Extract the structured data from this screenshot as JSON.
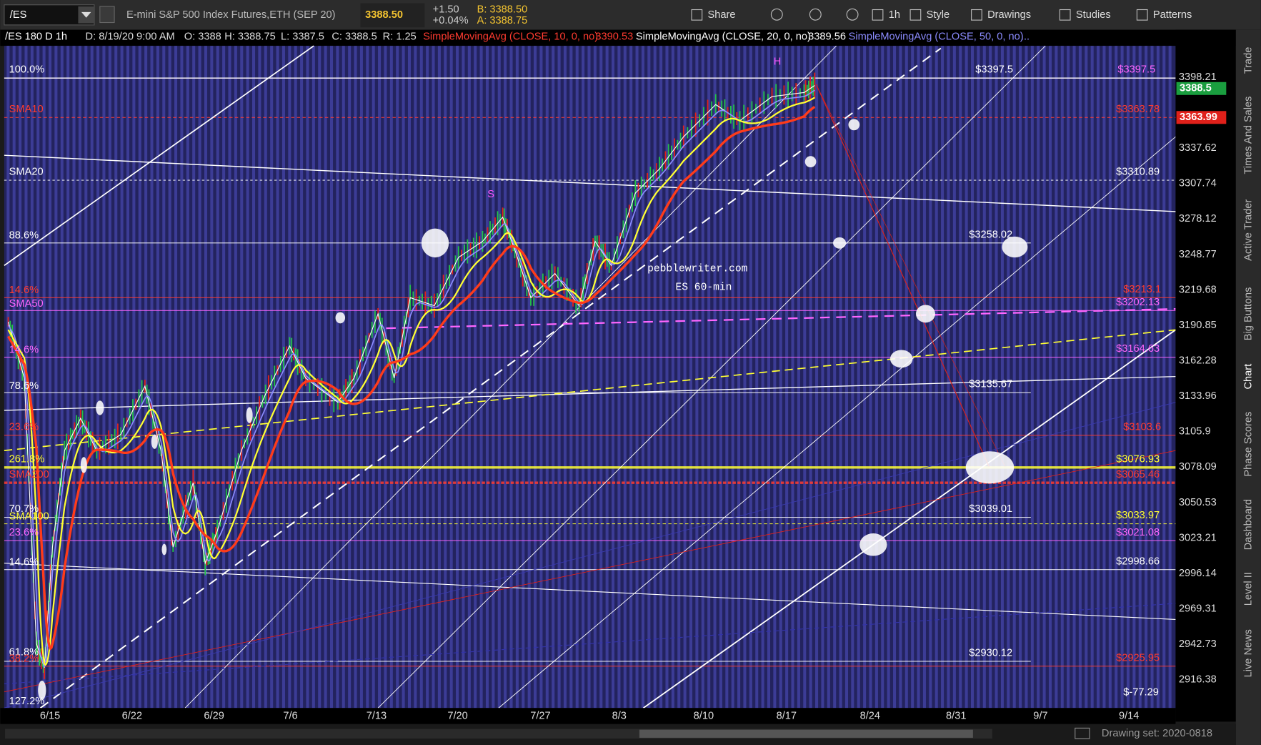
{
  "toolbar": {
    "symbol": "/ES",
    "description": "E-mini S&P 500 Index Futures,ETH (SEP 20)",
    "last": "3388.50",
    "change": "+1.50",
    "change_pct": "+0.04%",
    "bid": "B: 3388.50",
    "ask": "A: 3388.75",
    "buttons": [
      "Share",
      "1h",
      "Style",
      "Drawings",
      "Studies",
      "Patterns"
    ]
  },
  "info_bar": {
    "symbol": "/ES 180 D 1h",
    "items": [
      "D: 8/19/20 9:00 AM",
      "O: 3388",
      "H: 3388.75",
      "L: 3387.5",
      "C: 3388.5",
      "R: 1.25"
    ],
    "studies": [
      {
        "name": "SimpleMovingAvg (CLOSE, 10, 0, no)",
        "value": "3390.53",
        "color": "#ff3b30"
      },
      {
        "name": "SimpleMovingAvg (CLOSE, 20, 0, no)",
        "value": "3389.56",
        "color": "#ffffff"
      },
      {
        "name": "SimpleMovingAvg (CLOSE, 50, 0, no)",
        "value": "...",
        "color": "#8c8cff"
      }
    ]
  },
  "price_axis": [
    "3398.21",
    "3337.62",
    "3307.74",
    "3278.12",
    "3248.77",
    "3219.68",
    "3190.85",
    "3162.28",
    "3133.96",
    "3105.9",
    "3078.09",
    "3050.53",
    "3023.21",
    "2996.14",
    "2969.31",
    "2942.73",
    "2916.38"
  ],
  "price_tags": [
    {
      "label": "3388.5",
      "color": "#1a9e3f"
    },
    {
      "label": "3363.99",
      "color": "#e0201a"
    }
  ],
  "dates": [
    "6/15",
    "6/22",
    "6/29",
    "7/6",
    "7/13",
    "7/20",
    "7/27",
    "8/3",
    "8/10",
    "8/17",
    "8/24",
    "8/31",
    "9/7",
    "9/14"
  ],
  "left_labels": [
    {
      "text": "100.0%",
      "color": "#ffffff"
    },
    {
      "text": "SMA10",
      "color": "#ff3b30"
    },
    {
      "text": "SMA20",
      "color": "#ffffff"
    },
    {
      "text": "88.6%",
      "color": "#ffffff"
    },
    {
      "text": "14.6%",
      "color": "#ff3b30"
    },
    {
      "text": "SMA50",
      "color": "#ff66ff"
    },
    {
      "text": "14.6%",
      "color": "#ff66ff"
    },
    {
      "text": "78.6%",
      "color": "#ffffff"
    },
    {
      "text": "23.6%",
      "color": "#ff3b30"
    },
    {
      "text": "261.8%",
      "color": "#ffff33"
    },
    {
      "text": "SMA200",
      "color": "#ff3b30"
    },
    {
      "text": "70.7%",
      "color": "#ffffff"
    },
    {
      "text": "SMA100",
      "color": "#ffff33"
    },
    {
      "text": "23.6%",
      "color": "#ff66ff"
    },
    {
      "text": "14.6%",
      "color": "#ffffff"
    },
    {
      "text": "61.8%",
      "color": "#ffffff"
    },
    {
      "text": "38.2%",
      "color": "#ff3b30"
    },
    {
      "text": "127.2%",
      "color": "#ffffff"
    }
  ],
  "levels": [
    {
      "label": "$3397.5",
      "color": "#ffffff"
    },
    {
      "label": "$3397.5",
      "color": "#ff66ff"
    },
    {
      "label": "$3363.78",
      "color": "#ff3b30"
    },
    {
      "label": "$3310.89",
      "color": "#ffffff"
    },
    {
      "label": "$3258.02",
      "color": "#ffffff"
    },
    {
      "label": "$3213.1",
      "color": "#ff3b30"
    },
    {
      "label": "$3202.13",
      "color": "#ff66ff"
    },
    {
      "label": "$3164.63",
      "color": "#ff66ff"
    },
    {
      "label": "$3135.67",
      "color": "#ffffff"
    },
    {
      "label": "$3103.6",
      "color": "#ff3b30"
    },
    {
      "label": "$3076.93",
      "color": "#ffff33"
    },
    {
      "label": "$3065.46",
      "color": "#ff3b30"
    },
    {
      "label": "$3039.01",
      "color": "#ffffff"
    },
    {
      "label": "$3033.97",
      "color": "#ffff33"
    },
    {
      "label": "$3021.08",
      "color": "#ff66ff"
    },
    {
      "label": "$2998.66",
      "color": "#ffffff"
    },
    {
      "label": "$2930.12",
      "color": "#ffffff"
    },
    {
      "label": "$2925.95",
      "color": "#ff3b30"
    },
    {
      "label": "$-77.29",
      "color": "#ffffff"
    }
  ],
  "annotations": {
    "watermark": "pebblewriter.com",
    "subtitle": "ES 60-min",
    "s_marker": "S",
    "h_marker": "H"
  },
  "side_tabs": [
    "Trade",
    "Times And Sales",
    "Active Trader",
    "Big Buttons",
    "Chart",
    "Phase Scores",
    "Dashboard",
    "Level II",
    "Live News"
  ],
  "footer": "Drawing set: 2020-0818"
}
